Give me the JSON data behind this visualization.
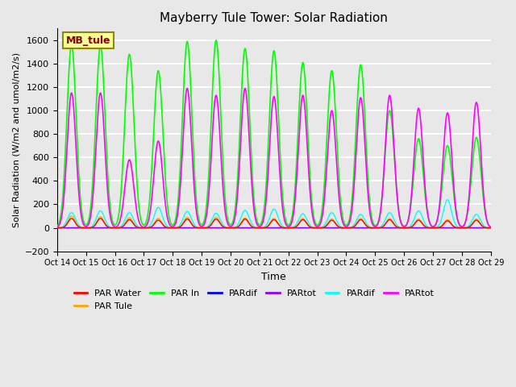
{
  "title": "Mayberry Tule Tower: Solar Radiation",
  "xlabel": "Time",
  "ylabel": "Solar Radiation (W/m2 and umol/m2/s)",
  "ylim": [
    -200,
    1700
  ],
  "yticks": [
    -200,
    0,
    200,
    400,
    600,
    800,
    1000,
    1200,
    1400,
    1600
  ],
  "x_labels": [
    "Oct 14",
    "Oct 15",
    "Oct 16",
    "Oct 17",
    "Oct 18",
    "Oct 19",
    "Oct 20",
    "Oct 21",
    "Oct 22",
    "Oct 23",
    "Oct 24",
    "Oct 25",
    "Oct 26",
    "Oct 27",
    "Oct 28",
    "Oct 29"
  ],
  "annotation_text": "MB_tule",
  "legend": [
    {
      "label": "PAR Water",
      "color": "#FF0000"
    },
    {
      "label": "PAR Tule",
      "color": "#FFA500"
    },
    {
      "label": "PAR In",
      "color": "#00FF00"
    },
    {
      "label": "PARdif",
      "color": "#0000FF"
    },
    {
      "label": "PARtot",
      "color": "#8B00FF"
    },
    {
      "label": "PARdif",
      "color": "#00FFFF"
    },
    {
      "label": "PARtot",
      "color": "#FF00FF"
    }
  ],
  "bg_color": "#E8E8E8",
  "grid_color": "#FFFFFF",
  "n_days": 15,
  "peaks_green": [
    1560,
    1550,
    1480,
    1340,
    1590,
    1600,
    1530,
    1510,
    1410,
    1340,
    1390,
    1000,
    760,
    700,
    770
  ],
  "peaks_magenta": [
    1150,
    1150,
    580,
    740,
    1190,
    1130,
    1190,
    1120,
    1130,
    1000,
    1110,
    1130,
    1020,
    980,
    1070
  ],
  "peaks_red": [
    80,
    80,
    70,
    65,
    75,
    75,
    75,
    70,
    70,
    65,
    70,
    70,
    65,
    60,
    65
  ],
  "peaks_orange": [
    100,
    95,
    85,
    80,
    90,
    90,
    85,
    80,
    80,
    75,
    80,
    80,
    75,
    70,
    75
  ],
  "peaks_cyan": [
    130,
    145,
    130,
    175,
    140,
    125,
    150,
    160,
    120,
    130,
    115,
    130,
    145,
    240,
    115
  ],
  "peaks_purple": [
    0,
    0,
    0,
    0,
    0,
    0,
    0,
    0,
    0,
    0,
    0,
    0,
    0,
    0,
    0
  ],
  "peaks_blue": [
    0,
    0,
    0,
    0,
    0,
    0,
    0,
    0,
    0,
    0,
    0,
    0,
    0,
    0,
    0
  ]
}
